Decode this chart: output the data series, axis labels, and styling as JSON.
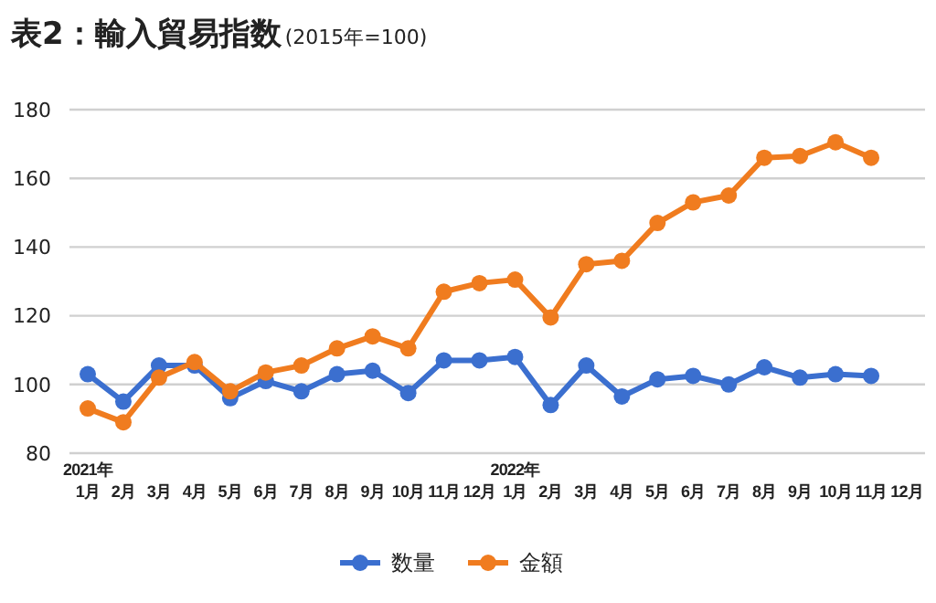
{
  "chart_data": {
    "type": "line",
    "title": "表2：輸入貿易指数",
    "subtitle": "(2015年=100)",
    "categories": [
      "2021年\n1月",
      "2月",
      "3月",
      "4月",
      "5月",
      "6月",
      "7月",
      "8月",
      "9月",
      "10月",
      "11月",
      "12月",
      "2022年\n1月",
      "2月",
      "3月",
      "4月",
      "5月",
      "6月",
      "7月",
      "8月",
      "9月",
      "10月",
      "11月",
      "12月"
    ],
    "series": [
      {
        "name": "数量",
        "color": "#3b6fcf",
        "values": [
          103,
          95,
          105.5,
          105.5,
          96,
          101,
          98,
          103,
          104,
          97.5,
          107,
          107,
          108,
          94,
          105.5,
          96.5,
          101.5,
          102.5,
          100,
          105,
          102,
          103,
          102.5,
          null
        ]
      },
      {
        "name": "金額",
        "color": "#f07c1f",
        "values": [
          93,
          89,
          102,
          106.5,
          98,
          103.5,
          105.5,
          110.5,
          114,
          110.5,
          127,
          129.5,
          130.5,
          119.5,
          135,
          136,
          147,
          153,
          155,
          166,
          166.5,
          170.5,
          166,
          null
        ]
      }
    ],
    "ylim": [
      80,
      180
    ],
    "yticks": [
      80,
      100,
      120,
      140,
      160,
      180
    ],
    "grid": "y",
    "legend": "bottom",
    "marker": "circle",
    "line_style": "solid"
  }
}
